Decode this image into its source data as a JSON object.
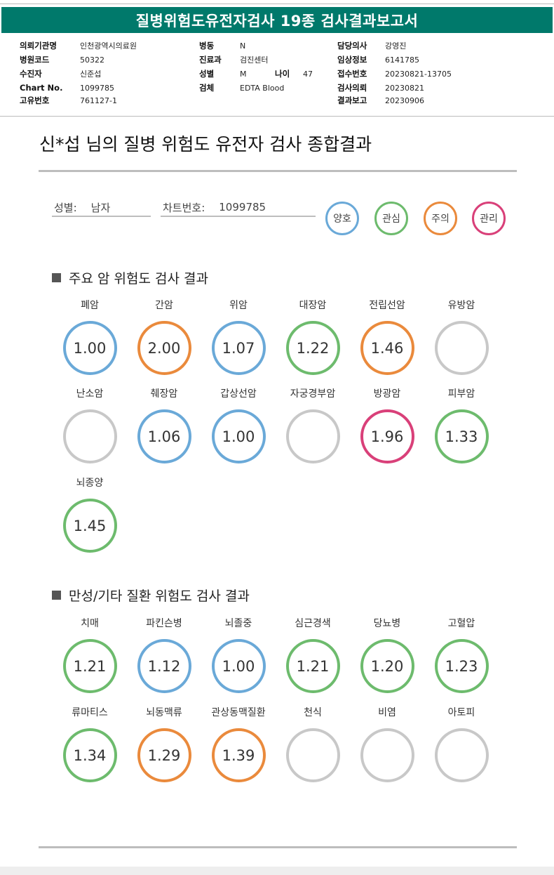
{
  "report_header": {
    "title": "질병위험도유전자검사 19종 검사결과보고서",
    "col1": [
      {
        "label": "의뢰기관명",
        "value": "인천광역시의료원"
      },
      {
        "label": "병원코드",
        "value": "50322"
      },
      {
        "label": "수진자",
        "value": "신준섭"
      },
      {
        "label": "Chart No.",
        "value": "1099785"
      },
      {
        "label": "고유번호",
        "value": "761127-1"
      }
    ],
    "col2": [
      {
        "label": "병동",
        "value": "N"
      },
      {
        "label": "진료과",
        "value": "검진센터"
      },
      {
        "label": "성별",
        "value": "M",
        "label2": "나이",
        "value2": "47"
      },
      {
        "label": "검체",
        "value": "EDTA Blood"
      }
    ],
    "col3": [
      {
        "label": "담당의사",
        "value": "강영진"
      },
      {
        "label": "임상정보",
        "value": "6141785"
      },
      {
        "label": "접수번호",
        "value": "20230821-13705"
      },
      {
        "label": "검사의뢰",
        "value": "20230821"
      },
      {
        "label": "결과보고",
        "value": "20230906"
      }
    ]
  },
  "summary": {
    "title": "신*섭 님의 질병 위험도 유전자 검사 종합결과",
    "sex_label": "성별:",
    "sex_value": "남자",
    "chart_label": "차트번호:",
    "chart_value": "1099785"
  },
  "colors": {
    "good": "#6aa9d8",
    "interest": "#6dbb6d",
    "caution": "#ea8a3c",
    "manage": "#d94079",
    "none": "#c8c8c8"
  },
  "legend": [
    {
      "label": "양호",
      "status": "good"
    },
    {
      "label": "관심",
      "status": "interest"
    },
    {
      "label": "주의",
      "status": "caution"
    },
    {
      "label": "관리",
      "status": "manage"
    }
  ],
  "cancer_section": {
    "title": "주요 암 위험도 검사 결과",
    "items": [
      {
        "name": "폐암",
        "value": "1.00",
        "status": "good"
      },
      {
        "name": "간암",
        "value": "2.00",
        "status": "caution"
      },
      {
        "name": "위암",
        "value": "1.07",
        "status": "good"
      },
      {
        "name": "대장암",
        "value": "1.22",
        "status": "interest"
      },
      {
        "name": "전립선암",
        "value": "1.46",
        "status": "caution"
      },
      {
        "name": "유방암",
        "value": "",
        "status": "none"
      },
      {
        "name": "난소암",
        "value": "",
        "status": "none"
      },
      {
        "name": "췌장암",
        "value": "1.06",
        "status": "good"
      },
      {
        "name": "갑상선암",
        "value": "1.00",
        "status": "good"
      },
      {
        "name": "자궁경부암",
        "value": "",
        "status": "none"
      },
      {
        "name": "방광암",
        "value": "1.96",
        "status": "manage"
      },
      {
        "name": "피부암",
        "value": "1.33",
        "status": "interest"
      },
      {
        "name": "뇌종양",
        "value": "1.45",
        "status": "interest"
      }
    ]
  },
  "chronic_section": {
    "title": "만성/기타 질환 위험도 검사 결과",
    "items": [
      {
        "name": "치매",
        "value": "1.21",
        "status": "interest"
      },
      {
        "name": "파킨슨병",
        "value": "1.12",
        "status": "good"
      },
      {
        "name": "뇌졸중",
        "value": "1.00",
        "status": "good"
      },
      {
        "name": "심근경색",
        "value": "1.21",
        "status": "interest"
      },
      {
        "name": "당뇨병",
        "value": "1.20",
        "status": "interest"
      },
      {
        "name": "고혈압",
        "value": "1.23",
        "status": "interest"
      },
      {
        "name": "류마티스",
        "value": "1.34",
        "status": "interest"
      },
      {
        "name": "뇌동맥류",
        "value": "1.29",
        "status": "caution"
      },
      {
        "name": "관상동맥질환",
        "value": "1.39",
        "status": "caution"
      },
      {
        "name": "천식",
        "value": "",
        "status": "none"
      },
      {
        "name": "비염",
        "value": "",
        "status": "none"
      },
      {
        "name": "아토피",
        "value": "",
        "status": "none"
      }
    ]
  }
}
